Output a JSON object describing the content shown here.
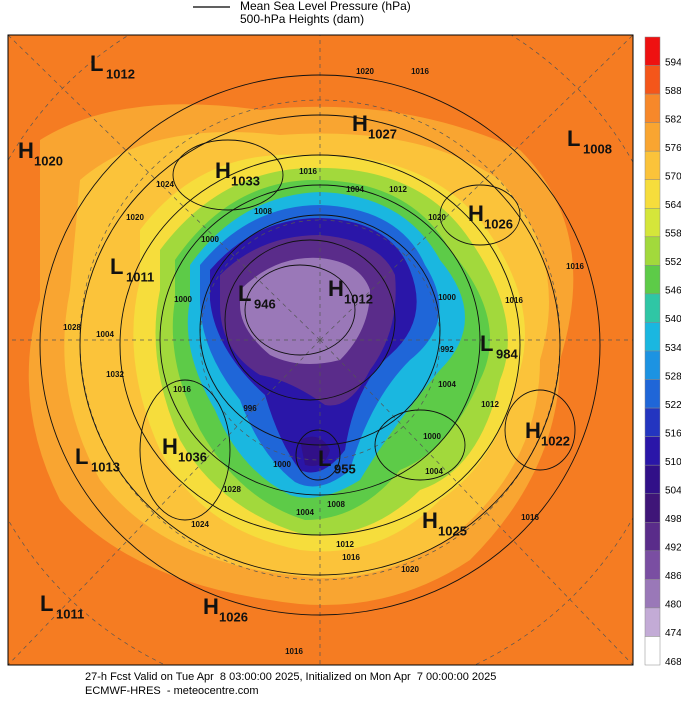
{
  "header": {
    "lines": [
      "Mean Sea Level Pressure (hPa)",
      "500-hPa Heights (dam)"
    ]
  },
  "colorbar": {
    "ticks": [
      594,
      588,
      582,
      576,
      570,
      564,
      558,
      552,
      546,
      540,
      534,
      528,
      522,
      516,
      510,
      504,
      498,
      492,
      486,
      480,
      474,
      468
    ],
    "colors": [
      "#ee1111",
      "#f4561a",
      "#f7882a",
      "#f9a531",
      "#fbc33a",
      "#f6dd3c",
      "#d5e63a",
      "#a2d93c",
      "#5dcb48",
      "#2fc6a5",
      "#1ab7e0",
      "#1c93e2",
      "#1f66d8",
      "#2335c0",
      "#2a16a8",
      "#311088",
      "#3f1578",
      "#5a2c8a",
      "#7a4ea2",
      "#9a78b8",
      "#c3abd6",
      "#ffffff"
    ]
  },
  "systems": [
    {
      "kind": "L",
      "value": 1012
    },
    {
      "kind": "H",
      "value": 1027
    },
    {
      "kind": "L",
      "value": 1008
    },
    {
      "kind": "H",
      "value": 1020
    },
    {
      "kind": "H",
      "value": 1033
    },
    {
      "kind": "H",
      "value": 1026
    },
    {
      "kind": "L",
      "value": 1011
    },
    {
      "kind": "L",
      "value": 946
    },
    {
      "kind": "H",
      "value": 1012
    },
    {
      "kind": "L",
      "value": 984
    },
    {
      "kind": "H",
      "value": 1022
    },
    {
      "kind": "L",
      "value": 1013
    },
    {
      "kind": "H",
      "value": 1036
    },
    {
      "kind": "L",
      "value": 955
    },
    {
      "kind": "H",
      "value": 1025
    },
    {
      "kind": "L",
      "value": 1011
    },
    {
      "kind": "H",
      "value": 1026
    }
  ],
  "isobar_labels": [
    "1020",
    "1016",
    "1024",
    "1020",
    "1016",
    "1004",
    "1012",
    "1020",
    "1000",
    "1008",
    "1016",
    "1016",
    "1000",
    "992",
    "1028",
    "1004",
    "1000",
    "1016",
    "1032",
    "1004",
    "1012",
    "1000",
    "1004",
    "996",
    "1008",
    "1004",
    "1012",
    "1016",
    "1020",
    "1016",
    "1024",
    "1028",
    "1000",
    "1016"
  ],
  "footer": {
    "lines": [
      "27-h Fcst Valid on Tue Apr  8 03:00:00 2025, Initialized on Mon Apr  7 00:00:00 2025",
      "ECMWF-HRES  - meteocentre.com"
    ]
  }
}
